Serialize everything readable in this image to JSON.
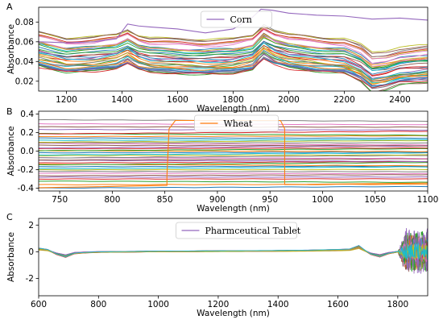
{
  "chart_data": [
    {
      "panel_label": "A",
      "type": "line",
      "xlabel": "Wavelength (nm)",
      "ylabel": "Absorbance",
      "xlim": [
        1100,
        2500
      ],
      "ylim": [
        0.01,
        0.095
      ],
      "xticks": [
        1200,
        1400,
        1600,
        1800,
        2000,
        2200,
        2400
      ],
      "yticks": [
        0.02,
        0.04,
        0.06,
        0.08
      ],
      "ytick_labels": [
        "0.02",
        "0.04",
        "0.06",
        "0.08"
      ],
      "legend": {
        "label": "Corn",
        "color": "#9467bd",
        "position": "top-center"
      },
      "highlight": {
        "color": "#9467bd",
        "x": [
          1100,
          1200,
          1300,
          1380,
          1420,
          1460,
          1500,
          1600,
          1700,
          1800,
          1870,
          1900,
          1940,
          2000,
          2100,
          2200,
          2300,
          2400,
          2500
        ],
        "y": [
          0.06,
          0.059,
          0.06,
          0.063,
          0.078,
          0.076,
          0.075,
          0.073,
          0.069,
          0.073,
          0.085,
          0.093,
          0.092,
          0.089,
          0.087,
          0.086,
          0.083,
          0.084,
          0.082
        ]
      },
      "base_profile": {
        "x": [
          1100,
          1150,
          1200,
          1300,
          1380,
          1420,
          1460,
          1500,
          1600,
          1700,
          1800,
          1870,
          1910,
          1950,
          2000,
          2100,
          2200,
          2260,
          2300,
          2350,
          2400,
          2450,
          2500
        ],
        "y": [
          0.05,
          0.047,
          0.044,
          0.045,
          0.048,
          0.053,
          0.047,
          0.044,
          0.043,
          0.042,
          0.043,
          0.047,
          0.058,
          0.052,
          0.048,
          0.045,
          0.043,
          0.036,
          0.027,
          0.029,
          0.033,
          0.034,
          0.035
        ]
      },
      "offset_range": [
        -0.016,
        0.02
      ],
      "n_series": 40
    },
    {
      "panel_label": "B",
      "type": "line",
      "xlabel": "Wavelength (nm)",
      "ylabel": "Absorbance",
      "xlim": [
        730,
        1100
      ],
      "ylim": [
        -0.43,
        0.43
      ],
      "xticks": [
        750,
        800,
        850,
        900,
        950,
        1000,
        1050,
        1100
      ],
      "yticks": [
        -0.4,
        -0.2,
        0.0,
        0.2,
        0.4
      ],
      "ytick_labels": [
        "-0.4",
        "-0.2",
        "0.0",
        "0.2",
        "0.4"
      ],
      "legend": {
        "label": "Wheat",
        "color": "#ff7f0e",
        "position": "top-center"
      },
      "highlight": {
        "color": "#ff7f0e",
        "x": [
          730,
          852,
          852,
          854,
          860,
          960,
          964,
          964,
          1100
        ],
        "y": [
          -0.395,
          -0.37,
          -0.27,
          0.24,
          0.33,
          0.33,
          0.24,
          -0.36,
          -0.345
        ]
      },
      "levels": [
        -0.39,
        -0.36,
        -0.33,
        -0.3,
        -0.28,
        -0.26,
        -0.24,
        -0.22,
        -0.2,
        -0.18,
        -0.165,
        -0.15,
        -0.135,
        -0.12,
        -0.105,
        -0.09,
        -0.075,
        -0.06,
        -0.045,
        -0.03,
        -0.015,
        0.0,
        0.015,
        0.03,
        0.045,
        0.06,
        0.075,
        0.09,
        0.105,
        0.12,
        0.14,
        0.16,
        0.18,
        0.2,
        0.23,
        0.26,
        0.29,
        0.33
      ],
      "slope_range": [
        -0.02,
        0.03
      ]
    },
    {
      "panel_label": "C",
      "type": "line",
      "xlabel": "Wavelength (nm)",
      "ylabel": "Absorbance",
      "xlim": [
        600,
        1900
      ],
      "ylim": [
        -3.3,
        2.5
      ],
      "xticks": [
        600,
        800,
        1000,
        1200,
        1400,
        1600,
        1800
      ],
      "yticks": [
        -2,
        0,
        2
      ],
      "ytick_labels": [
        "-2",
        "0",
        "2"
      ],
      "legend": {
        "label": "Pharmceutical Tablet",
        "color": "#9467bd",
        "position": "top-center"
      },
      "base_profile": {
        "x": [
          600,
          630,
          660,
          690,
          720,
          760,
          800,
          900,
          1000,
          1100,
          1200,
          1300,
          1400,
          1500,
          1600,
          1640,
          1670,
          1690,
          1710,
          1740,
          1770,
          1800
        ],
        "y": [
          0.2,
          0.12,
          -0.15,
          -0.32,
          -0.1,
          -0.05,
          -0.02,
          0.0,
          0.02,
          0.03,
          0.04,
          0.05,
          0.06,
          0.08,
          0.12,
          0.15,
          0.35,
          0.08,
          -0.15,
          -0.3,
          -0.1,
          0.0
        ]
      },
      "noise_start": 1800,
      "noise_amplitude": [
        0.5,
        1.8
      ],
      "n_series": 30
    }
  ],
  "series_colors": [
    "#1f77b4",
    "#ff7f0e",
    "#2ca02c",
    "#d62728",
    "#9467bd",
    "#8c564b",
    "#e377c2",
    "#7f7f7f",
    "#bcbd22",
    "#17becf"
  ]
}
